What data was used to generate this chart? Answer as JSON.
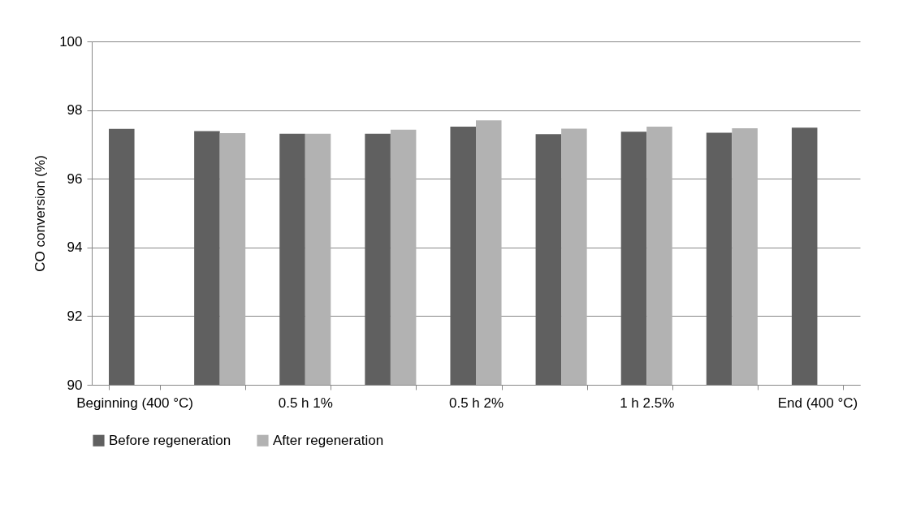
{
  "chart_data": {
    "type": "bar",
    "ylabel": "CO conversion (%)",
    "categories": [
      "Beginning (400 °C)",
      null,
      "0.5 h 1%",
      null,
      "0.5 h 2%",
      null,
      "1 h 2.5%",
      null,
      "End (400 °C)"
    ],
    "series": [
      {
        "name": "Before regeneration",
        "color": "#606060",
        "values": [
          97.45,
          97.39,
          97.31,
          97.31,
          97.52,
          97.3,
          97.37,
          97.34,
          97.49
        ]
      },
      {
        "name": "After regeneration",
        "color": "#b2b2b2",
        "values": [
          null,
          97.33,
          97.31,
          97.43,
          97.7,
          97.46,
          97.52,
          97.47,
          null
        ]
      }
    ],
    "ylim": [
      90,
      100
    ],
    "yticks": [
      90,
      92,
      94,
      96,
      98,
      100
    ],
    "grid": "y",
    "legend": "bottom"
  }
}
